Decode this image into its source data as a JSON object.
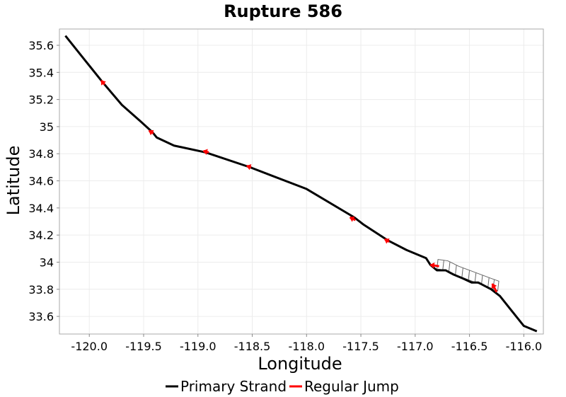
{
  "chart_data": {
    "type": "line",
    "title": "Rupture 586",
    "xlabel": "Longitude",
    "ylabel": "Latitude",
    "xlim": [
      -120.275,
      -115.82
    ],
    "ylim": [
      33.47,
      35.72
    ],
    "x_ticks": [
      -120.0,
      -119.5,
      -119.0,
      -118.5,
      -118.0,
      -117.5,
      -117.0,
      -116.5,
      -116.0
    ],
    "x_tick_labels": [
      "-120.0",
      "-119.5",
      "-119.0",
      "-118.5",
      "-118.0",
      "-117.5",
      "-117.0",
      "-116.5",
      "-116.0"
    ],
    "y_ticks": [
      33.6,
      33.8,
      34.0,
      34.2,
      34.4,
      34.6,
      34.8,
      35.0,
      35.2,
      35.4,
      35.6
    ],
    "y_tick_labels": [
      "33.6",
      "33.8",
      "34",
      "34.2",
      "34.4",
      "34.6",
      "34.8",
      "35",
      "35.2",
      "35.4",
      "35.6"
    ],
    "grid": true,
    "legend_position": "bottom",
    "series": [
      {
        "name": "Primary Strand",
        "color": "#000000",
        "points": [
          [
            -120.22,
            35.67
          ],
          [
            -120.05,
            35.5
          ],
          [
            -119.88,
            35.33
          ],
          [
            -119.7,
            35.16
          ],
          [
            -119.53,
            35.04
          ],
          [
            -119.42,
            34.96
          ],
          [
            -119.38,
            34.92
          ],
          [
            -119.22,
            34.86
          ],
          [
            -118.93,
            34.81
          ],
          [
            -118.52,
            34.7
          ],
          [
            -118.0,
            34.54
          ],
          [
            -117.56,
            34.33
          ],
          [
            -117.48,
            34.28
          ],
          [
            -117.25,
            34.16
          ],
          [
            -117.08,
            34.09
          ],
          [
            -116.9,
            34.03
          ],
          [
            -116.86,
            33.98
          ],
          [
            -116.8,
            33.94
          ],
          [
            -116.72,
            33.94
          ],
          [
            -116.65,
            33.91
          ],
          [
            -116.56,
            33.88
          ],
          [
            -116.48,
            33.85
          ],
          [
            -116.42,
            33.85
          ],
          [
            -116.3,
            33.8
          ],
          [
            -116.22,
            33.75
          ],
          [
            -116.12,
            33.65
          ],
          [
            -116.0,
            33.53
          ],
          [
            -115.88,
            33.49
          ]
        ]
      },
      {
        "name": "Regular Jump",
        "color": "#ff0000",
        "segments": [
          [
            [
              -119.89,
              35.34
            ],
            [
              -119.86,
              35.31
            ]
          ],
          [
            [
              -119.45,
              34.97
            ],
            [
              -119.41,
              34.95
            ]
          ],
          [
            [
              -118.95,
              34.82
            ],
            [
              -118.9,
              34.81
            ]
          ],
          [
            [
              -118.55,
              34.71
            ],
            [
              -118.51,
              34.7
            ]
          ],
          [
            [
              -117.6,
              34.33
            ],
            [
              -117.55,
              34.31
            ]
          ],
          [
            [
              -117.28,
              34.17
            ],
            [
              -117.24,
              34.15
            ]
          ],
          [
            [
              -116.86,
              33.98
            ],
            [
              -116.78,
              33.97
            ]
          ],
          [
            [
              -116.29,
              33.84
            ],
            [
              -116.25,
              33.78
            ]
          ]
        ]
      }
    ],
    "fault_surface": {
      "color": "#666666",
      "trace": [
        [
          -116.79,
          34.02
        ],
        [
          -116.7,
          34.01
        ],
        [
          -116.6,
          33.97
        ],
        [
          -116.5,
          33.94
        ],
        [
          -116.4,
          33.91
        ],
        [
          -116.3,
          33.88
        ],
        [
          -116.23,
          33.86
        ]
      ],
      "depth_offset": [
        -0.01,
        -0.07
      ]
    }
  }
}
